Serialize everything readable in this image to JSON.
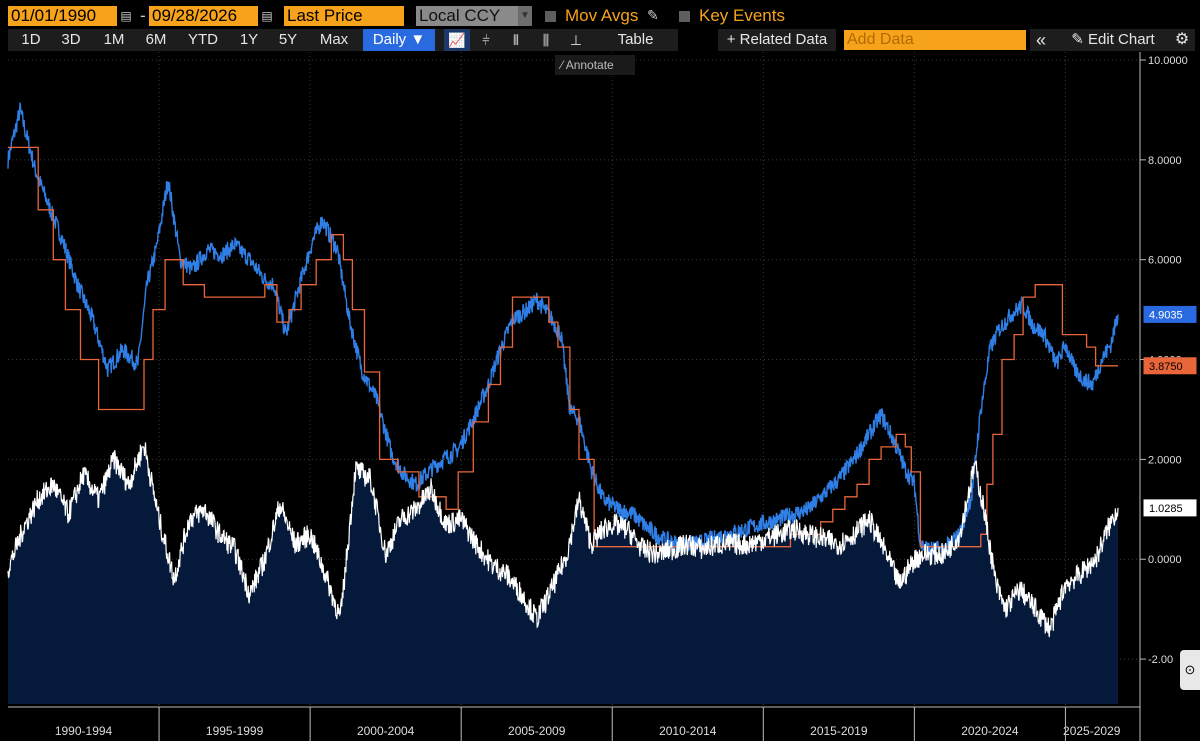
{
  "toolbar": {
    "start_date": "01/01/1990",
    "date_separator": "-",
    "end_date": "09/28/2026",
    "field": "Last Price",
    "currency": "Local CCY",
    "mov_avgs": "Mov Avgs",
    "key_events": "Key Events"
  },
  "periods": [
    "1D",
    "3D",
    "1M",
    "6M",
    "YTD",
    "1Y",
    "5Y",
    "Max"
  ],
  "frequency": "Daily ▼",
  "chart_buttons": {
    "table": "Table",
    "related_data": "+ Related Data",
    "add_data_placeholder": "Add Data",
    "collapse": "«",
    "edit_chart": "Edit Chart"
  },
  "annotate_label": "Annotate",
  "colors": {
    "accent_orange": "#f7a21b",
    "blue_series": "#2f7fe6",
    "orange_series": "#e8663a",
    "white_series": "#ffffff",
    "fill_navy": "#051a3a",
    "background": "#000000"
  },
  "chart_data": {
    "type": "line",
    "x_axis_labels": [
      "1990-1994",
      "1995-1999",
      "2000-2004",
      "2005-2009",
      "2010-2014",
      "2015-2019",
      "2020-2024",
      "2025-2029"
    ],
    "y_axis": {
      "ticks": [
        "10.0000",
        "8.0000",
        "6.0000",
        "4.0000",
        "2.0000",
        "0.0000",
        "-2.00"
      ],
      "tick_values": [
        10,
        8,
        6,
        4,
        2,
        0,
        -2
      ],
      "range": [
        -2.9,
        10
      ]
    },
    "x_range": [
      1990.0,
      2026.74
    ],
    "series": [
      {
        "color": "#2f7fe6",
        "last_value_label": "4.9035",
        "last_value": 4.9035,
        "x": [
          1990.0,
          1990.4,
          1990.9,
          1991.4,
          1991.8,
          1992.3,
          1992.8,
          1993.3,
          1993.8,
          1994.3,
          1994.6,
          1994.9,
          1995.3,
          1995.7,
          1996.1,
          1996.6,
          1997.1,
          1997.5,
          1998.0,
          1998.5,
          1998.8,
          1999.2,
          1999.7,
          2000.1,
          2000.4,
          2000.9,
          2001.3,
          2001.7,
          2002.2,
          2002.7,
          2003.1,
          2003.5,
          2004.0,
          2004.4,
          2004.9,
          2005.4,
          2005.9,
          2006.3,
          2006.7,
          2007.2,
          2007.5,
          2007.9,
          2008.3,
          2008.6,
          2008.9,
          2009.3,
          2009.7,
          2010.2,
          2010.7,
          2011.2,
          2011.7,
          2012.2,
          2012.7,
          2013.3,
          2013.8,
          2014.4,
          2014.9,
          2015.5,
          2016.0,
          2016.5,
          2017.0,
          2017.5,
          2018.0,
          2018.5,
          2018.9,
          2019.3,
          2019.7,
          2020.0,
          2020.2,
          2020.5,
          2021.0,
          2021.5,
          2021.9,
          2022.2,
          2022.5,
          2022.8,
          2023.2,
          2023.6,
          2023.9,
          2024.3,
          2024.7,
          2025.0,
          2025.3,
          2025.6,
          2025.9,
          2026.2,
          2026.5,
          2026.74
        ],
        "y": [
          8.0,
          9.0,
          7.8,
          7.0,
          6.4,
          5.5,
          4.8,
          3.8,
          4.2,
          3.9,
          5.5,
          6.2,
          7.6,
          6.0,
          5.8,
          6.2,
          6.1,
          6.3,
          6.0,
          5.6,
          5.5,
          4.5,
          5.6,
          6.4,
          6.8,
          6.2,
          4.8,
          3.8,
          3.2,
          2.1,
          1.7,
          1.5,
          1.8,
          2.0,
          2.2,
          2.8,
          3.5,
          4.2,
          4.8,
          5.0,
          5.2,
          4.9,
          4.5,
          3.0,
          2.8,
          1.8,
          1.2,
          1.0,
          0.9,
          0.6,
          0.4,
          0.3,
          0.3,
          0.4,
          0.5,
          0.6,
          0.7,
          0.8,
          0.9,
          1.0,
          1.3,
          1.6,
          2.0,
          2.5,
          2.9,
          2.4,
          1.8,
          1.5,
          0.3,
          0.2,
          0.2,
          0.5,
          1.3,
          3.0,
          4.2,
          4.6,
          4.9,
          5.1,
          4.7,
          4.5,
          3.9,
          4.3,
          3.8,
          3.6,
          3.5,
          4.0,
          4.3,
          4.9035
        ]
      },
      {
        "color": "#e8663a",
        "last_value_label": "3.8750",
        "last_value": 3.875,
        "x": [
          1990.0,
          1990.5,
          1991.0,
          1991.5,
          1991.9,
          1992.4,
          1993.0,
          1994.0,
          1994.5,
          1994.8,
          1995.2,
          1995.8,
          1996.5,
          1997.5,
          1998.5,
          1998.9,
          1999.3,
          1999.7,
          2000.2,
          2000.7,
          2001.1,
          2001.4,
          2001.8,
          2002.3,
          2002.9,
          2003.6,
          2004.5,
          2004.9,
          2005.4,
          2005.9,
          2006.3,
          2006.7,
          2007.6,
          2007.9,
          2008.2,
          2008.6,
          2008.9,
          2009.4,
          2010.0,
          2011.0,
          2012.0,
          2013.0,
          2014.0,
          2015.0,
          2015.9,
          2016.5,
          2016.9,
          2017.3,
          2017.7,
          2018.1,
          2018.5,
          2018.9,
          2019.4,
          2019.7,
          2019.9,
          2020.2,
          2021.0,
          2021.9,
          2022.2,
          2022.4,
          2022.6,
          2022.9,
          2023.3,
          2023.6,
          2024.0,
          2024.7,
          2024.9,
          2025.4,
          2025.7,
          2026.0,
          2026.74
        ],
        "y": [
          8.25,
          8.25,
          7.0,
          6.0,
          5.0,
          4.0,
          3.0,
          3.0,
          4.0,
          5.0,
          6.0,
          5.5,
          5.25,
          5.25,
          5.5,
          4.75,
          5.0,
          5.5,
          6.0,
          6.5,
          6.0,
          5.0,
          3.75,
          2.0,
          1.75,
          1.25,
          1.0,
          1.75,
          2.75,
          3.5,
          4.25,
          5.25,
          5.25,
          4.75,
          4.25,
          3.0,
          2.0,
          0.25,
          0.25,
          0.25,
          0.25,
          0.25,
          0.25,
          0.25,
          0.5,
          0.5,
          0.75,
          1.0,
          1.25,
          1.5,
          2.0,
          2.25,
          2.5,
          2.25,
          1.75,
          0.25,
          0.25,
          0.25,
          0.5,
          1.5,
          2.5,
          4.0,
          4.5,
          5.25,
          5.5,
          5.5,
          4.5,
          4.5,
          4.25,
          3.875,
          3.875
        ]
      },
      {
        "color": "#ffffff",
        "last_value_label": "1.0285",
        "last_value": 1.0285,
        "x": [
          1990.0,
          1990.5,
          1991.0,
          1991.5,
          1992.0,
          1992.5,
          1993.0,
          1993.5,
          1994.0,
          1994.5,
          1995.0,
          1995.5,
          1996.0,
          1996.5,
          1997.0,
          1997.5,
          1998.0,
          1998.5,
          1999.0,
          1999.5,
          2000.0,
          2000.5,
          2001.0,
          2001.5,
          2002.0,
          2002.5,
          2003.0,
          2003.5,
          2004.0,
          2004.5,
          2005.0,
          2005.5,
          2006.0,
          2006.5,
          2007.0,
          2007.5,
          2008.0,
          2008.5,
          2008.9,
          2009.3,
          2009.7,
          2010.0,
          2010.5,
          2011.0,
          2011.5,
          2012.0,
          2012.5,
          2013.0,
          2013.5,
          2014.0,
          2014.5,
          2015.0,
          2015.5,
          2016.0,
          2016.5,
          2017.0,
          2017.5,
          2018.0,
          2018.5,
          2019.0,
          2019.5,
          2020.0,
          2020.3,
          2020.7,
          2021.0,
          2021.5,
          2022.0,
          2022.3,
          2022.7,
          2023.0,
          2023.5,
          2024.0,
          2024.5,
          2025.0,
          2025.5,
          2026.0,
          2026.4,
          2026.74
        ],
        "y": [
          -0.2,
          0.6,
          1.2,
          1.5,
          0.9,
          1.7,
          1.2,
          2.0,
          1.5,
          2.3,
          0.8,
          -0.4,
          0.8,
          1.0,
          0.5,
          0.2,
          -0.7,
          0.0,
          1.1,
          0.3,
          0.5,
          -0.3,
          -1.2,
          1.8,
          1.6,
          0.1,
          0.8,
          1.0,
          1.4,
          0.7,
          0.8,
          0.3,
          -0.1,
          -0.3,
          -0.7,
          -1.2,
          -0.6,
          0.1,
          1.2,
          0.3,
          0.6,
          0.7,
          0.6,
          0.2,
          0.1,
          0.2,
          0.3,
          0.2,
          0.3,
          0.3,
          0.3,
          0.4,
          0.5,
          0.6,
          0.5,
          0.4,
          0.3,
          0.5,
          0.8,
          0.2,
          -0.5,
          0.0,
          0.1,
          0.1,
          0.1,
          0.5,
          1.9,
          1.0,
          -0.5,
          -1.0,
          -0.6,
          -1.0,
          -1.4,
          -0.5,
          -0.3,
          0.0,
          0.6,
          1.0285
        ]
      }
    ]
  }
}
